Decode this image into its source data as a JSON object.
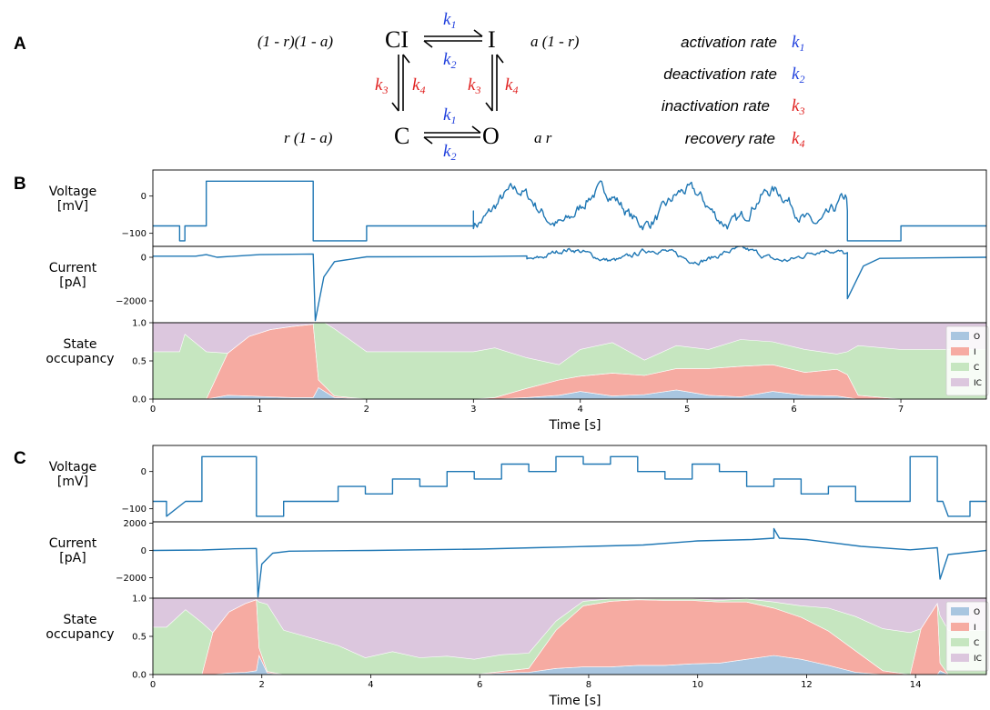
{
  "panel_labels": [
    "A",
    "B",
    "C"
  ],
  "scheme": {
    "states": {
      "CI": "CI",
      "I": "I",
      "C": "C",
      "O": "O"
    },
    "occupancy_labels": {
      "CI": "(1 - r)(1 - a)",
      "I": "a (1 - r)",
      "C": "r (1 - a)",
      "O": "a r"
    },
    "rate_symbols": {
      "k1": "k",
      "k1_sub": "1",
      "k2": "k",
      "k2_sub": "2",
      "k3": "k",
      "k3_sub": "3",
      "k4": "k",
      "k4_sub": "4"
    },
    "legend": [
      {
        "label": "activation rate",
        "sym": "k",
        "sub": "1",
        "color": "#1f3fdd"
      },
      {
        "label": "deactivation rate",
        "sym": "k",
        "sub": "2",
        "color": "#1f3fdd"
      },
      {
        "label": "inactivation rate",
        "sym": "k",
        "sub": "3",
        "color": "#e0201f"
      },
      {
        "label": "recovery rate",
        "sym": "k",
        "sub": "4",
        "color": "#e0201f"
      }
    ],
    "colors": {
      "blue": "#1f3fdd",
      "red": "#e0201f"
    }
  },
  "chart_data": [
    {
      "id": "B-voltage",
      "type": "line",
      "ylabel": [
        "Voltage",
        "[mV]"
      ],
      "yticks": [
        -100,
        0
      ],
      "ylim": [
        -135,
        70
      ],
      "xlim": [
        0,
        7.8
      ],
      "color": "#1f77b4",
      "series": [
        {
          "x": [
            0,
            0.25,
            0.25,
            0.3,
            0.3,
            0.5,
            0.5,
            1.5,
            1.5,
            2.0,
            2.0,
            3.0,
            3.0,
            6.5,
            6.5,
            7.0,
            7.0,
            7.8
          ],
          "y": [
            -80,
            -80,
            -120,
            -120,
            -80,
            -80,
            40,
            40,
            -120,
            -120,
            -80,
            -80,
            -40,
            -40,
            -120,
            -120,
            -80,
            -80
          ]
        }
      ],
      "stochastic": {
        "t_start": 3.0,
        "t_end": 6.5,
        "center": -30,
        "amp": 45,
        "period": 0.8,
        "noise": 25
      }
    },
    {
      "id": "B-current",
      "type": "line",
      "ylabel": [
        "Current",
        "[pA]"
      ],
      "yticks": [
        -2000,
        0
      ],
      "ylim": [
        -3000,
        500
      ],
      "xlim": [
        0,
        7.8
      ],
      "color": "#1f77b4",
      "series": [
        {
          "x": [
            0,
            0.4,
            0.5,
            0.6,
            1.0,
            1.5,
            1.5,
            1.52,
            1.6,
            1.7,
            2.0,
            3.0,
            3.5,
            6.5,
            6.5,
            6.55,
            6.65,
            6.8,
            7.8
          ],
          "y": [
            50,
            50,
            120,
            0,
            120,
            150,
            150,
            -2900,
            -900,
            -200,
            20,
            30,
            60,
            60,
            -1900,
            -1400,
            -400,
            -50,
            0
          ]
        }
      ],
      "stochastic": {
        "t_start": 3.5,
        "t_end": 6.5,
        "center": 100,
        "amp": 250,
        "period": 0.8,
        "noise": 180
      }
    },
    {
      "id": "B-occupancy",
      "type": "area",
      "ylabel": [
        "State",
        "occupancy"
      ],
      "yticks": [
        0.0,
        0.5,
        1.0
      ],
      "ylim": [
        0,
        1
      ],
      "xlim": [
        0,
        7.8
      ],
      "xticks": [
        0,
        1,
        2,
        3,
        4,
        5,
        6,
        7
      ],
      "xlabel": "Time [s]",
      "legend": [
        "O",
        "I",
        "C",
        "IC"
      ],
      "colors": {
        "O": "#a9c6e0",
        "I": "#f6aba2",
        "C": "#c6e6c0",
        "IC": "#dcc7de"
      },
      "x": [
        0,
        0.25,
        0.3,
        0.5,
        0.7,
        0.9,
        1.1,
        1.3,
        1.5,
        1.55,
        1.7,
        2.0,
        2.5,
        3.0,
        3.2,
        3.5,
        3.8,
        4.0,
        4.3,
        4.6,
        4.9,
        5.2,
        5.5,
        5.8,
        6.1,
        6.4,
        6.5,
        6.6,
        7.0,
        7.8
      ],
      "O": [
        0.0,
        0.0,
        0.0,
        0.0,
        0.05,
        0.04,
        0.03,
        0.02,
        0.02,
        0.15,
        0.02,
        0.0,
        0.0,
        0.0,
        0.0,
        0.02,
        0.05,
        0.1,
        0.04,
        0.06,
        0.12,
        0.05,
        0.03,
        0.1,
        0.05,
        0.04,
        0.02,
        0.0,
        0.0,
        0.0
      ],
      "I": [
        0.0,
        0.0,
        0.0,
        0.0,
        0.55,
        0.78,
        0.88,
        0.93,
        0.96,
        0.1,
        0.02,
        0.0,
        0.0,
        0.0,
        0.02,
        0.12,
        0.2,
        0.2,
        0.3,
        0.25,
        0.28,
        0.35,
        0.4,
        0.35,
        0.3,
        0.35,
        0.3,
        0.05,
        0.0,
        0.0
      ],
      "C": [
        0.62,
        0.62,
        0.85,
        0.62,
        0.0,
        0.0,
        0.0,
        0.0,
        0.0,
        0.8,
        0.88,
        0.62,
        0.62,
        0.62,
        0.65,
        0.4,
        0.2,
        0.35,
        0.4,
        0.2,
        0.3,
        0.25,
        0.35,
        0.3,
        0.3,
        0.2,
        0.3,
        0.65,
        0.65,
        0.65
      ]
    },
    {
      "id": "C-voltage",
      "type": "line",
      "ylabel": [
        "Voltage",
        "[mV]"
      ],
      "yticks": [
        -100,
        0
      ],
      "ylim": [
        -135,
        70
      ],
      "xlim": [
        0,
        15.3
      ],
      "color": "#1f77b4",
      "series": [
        {
          "x": [
            0,
            0.25,
            0.25,
            0.6,
            0.6,
            0.9,
            0.9,
            1.9,
            1.9,
            2.4,
            2.4,
            3.4,
            3.4,
            3.9,
            3.9,
            4.4,
            4.4,
            4.9,
            4.9,
            5.4,
            5.4,
            5.9,
            5.9,
            6.4,
            6.4,
            6.9,
            6.9,
            7.4,
            7.4,
            7.9,
            7.9,
            8.4,
            8.4,
            8.9,
            8.9,
            9.4,
            9.4,
            9.9,
            9.9,
            10.4,
            10.4,
            10.9,
            10.9,
            11.4,
            11.4,
            11.9,
            11.9,
            12.4,
            12.4,
            12.9,
            12.9,
            13.4,
            13.4,
            13.9,
            13.9,
            14.4,
            14.4,
            14.5,
            14.6,
            15.0,
            15.0,
            15.3
          ],
          "y": [
            -80,
            -80,
            -120,
            -80,
            -80,
            -80,
            40,
            40,
            -120,
            -120,
            -80,
            -80,
            -40,
            -40,
            -60,
            -60,
            -20,
            -20,
            -40,
            -40,
            0,
            0,
            -20,
            -20,
            20,
            20,
            0,
            0,
            40,
            40,
            20,
            20,
            40,
            40,
            0,
            0,
            -20,
            -20,
            20,
            20,
            0,
            0,
            -40,
            -40,
            -20,
            -20,
            -60,
            -60,
            -40,
            -40,
            -80,
            -80,
            -80,
            -80,
            40,
            40,
            -80,
            -80,
            -120,
            -120,
            -80,
            -80
          ]
        }
      ]
    },
    {
      "id": "C-current",
      "type": "line",
      "ylabel": [
        "Current",
        "[pA]"
      ],
      "yticks": [
        -2000,
        0,
        2000
      ],
      "ylim": [
        -3500,
        2100
      ],
      "xlim": [
        0,
        15.3
      ],
      "color": "#1f77b4",
      "series": [
        {
          "x": [
            0,
            0.9,
            1.5,
            1.9,
            1.9,
            1.93,
            2.0,
            2.2,
            2.5,
            4.0,
            6.0,
            7.0,
            8.0,
            9.0,
            10.0,
            11.0,
            11.4,
            11.4,
            11.5,
            12.0,
            13.0,
            13.9,
            14.4,
            14.4,
            14.45,
            14.6,
            15.3
          ],
          "y": [
            0,
            30,
            120,
            150,
            150,
            -3400,
            -1000,
            -200,
            -50,
            0,
            100,
            200,
            300,
            400,
            700,
            800,
            900,
            1600,
            900,
            800,
            300,
            50,
            200,
            200,
            -2100,
            -300,
            0
          ]
        }
      ]
    },
    {
      "id": "C-occupancy",
      "type": "area",
      "ylabel": [
        "State",
        "occupancy"
      ],
      "yticks": [
        0.0,
        0.5,
        1.0
      ],
      "ylim": [
        0,
        1
      ],
      "xlim": [
        0,
        15.3
      ],
      "xticks": [
        0,
        2,
        4,
        6,
        8,
        10,
        12,
        14
      ],
      "xlabel": "Time [s]",
      "legend": [
        "O",
        "I",
        "C",
        "IC"
      ],
      "colors": {
        "O": "#a9c6e0",
        "I": "#f6aba2",
        "C": "#c6e6c0",
        "IC": "#dcc7de"
      },
      "x": [
        0,
        0.25,
        0.6,
        0.9,
        1.1,
        1.4,
        1.7,
        1.9,
        1.95,
        2.1,
        2.4,
        3.4,
        3.9,
        4.4,
        4.9,
        5.4,
        5.9,
        6.4,
        6.9,
        7.4,
        7.9,
        8.4,
        8.9,
        9.4,
        9.9,
        10.4,
        10.9,
        11.4,
        11.9,
        12.4,
        12.9,
        13.4,
        13.9,
        14.1,
        14.4,
        14.45,
        14.6,
        15.0,
        15.3
      ],
      "O": [
        0.0,
        0.0,
        0.0,
        0.0,
        0.0,
        0.02,
        0.03,
        0.05,
        0.25,
        0.02,
        0.0,
        0.0,
        0.0,
        0.0,
        0.0,
        0.0,
        0.0,
        0.02,
        0.03,
        0.08,
        0.1,
        0.1,
        0.12,
        0.12,
        0.14,
        0.15,
        0.2,
        0.25,
        0.2,
        0.12,
        0.03,
        0.0,
        0.0,
        0.0,
        0.0,
        0.05,
        0.0,
        0.0,
        0.0
      ],
      "I": [
        0.0,
        0.0,
        0.0,
        0.0,
        0.55,
        0.8,
        0.9,
        0.93,
        0.1,
        0.02,
        0.0,
        0.0,
        0.0,
        0.0,
        0.0,
        0.0,
        0.0,
        0.02,
        0.05,
        0.5,
        0.8,
        0.86,
        0.86,
        0.85,
        0.83,
        0.8,
        0.75,
        0.62,
        0.55,
        0.45,
        0.28,
        0.05,
        0.0,
        0.6,
        0.93,
        0.1,
        0.0,
        0.0,
        0.0
      ],
      "C": [
        0.62,
        0.62,
        0.85,
        0.68,
        0.0,
        0.0,
        0.0,
        0.0,
        0.6,
        0.88,
        0.58,
        0.38,
        0.22,
        0.3,
        0.22,
        0.24,
        0.2,
        0.22,
        0.2,
        0.12,
        0.06,
        0.03,
        0.01,
        0.02,
        0.02,
        0.02,
        0.04,
        0.08,
        0.15,
        0.3,
        0.45,
        0.55,
        0.55,
        0.0,
        0.0,
        0.62,
        0.58,
        0.58,
        0.58
      ]
    }
  ]
}
